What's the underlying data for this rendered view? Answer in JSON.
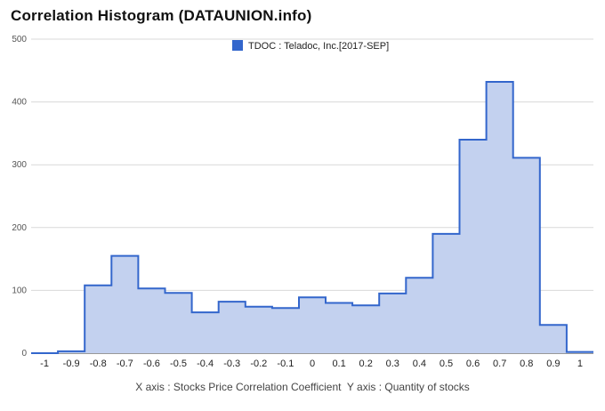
{
  "title": "Correlation Histogram (DATAUNION.info)",
  "caption": "X axis : Stocks Price Correlation Coefficient  Y axis : Quantity of stocks",
  "colors": {
    "line": "#3366cc",
    "fill": "#c3d1ef",
    "grid": "#d9d9d9",
    "legend_swatch": "#3366cc"
  },
  "chart_data": {
    "type": "area",
    "series": [
      {
        "name": "TDOC : Teladoc, Inc.[2017-SEP]",
        "x": [
          -1,
          -0.9,
          -0.8,
          -0.7,
          -0.6,
          -0.5,
          -0.4,
          -0.3,
          -0.2,
          -0.1,
          0,
          0.1,
          0.2,
          0.3,
          0.4,
          0.5,
          0.6,
          0.7,
          0.8,
          0.9,
          1
        ],
        "values": [
          0,
          3,
          108,
          155,
          103,
          96,
          65,
          82,
          74,
          72,
          89,
          80,
          76,
          95,
          120,
          190,
          340,
          432,
          311,
          45,
          2
        ]
      }
    ],
    "x_tick_labels": [
      "-1",
      "-0.9",
      "-0.8",
      "-0.7",
      "-0.6",
      "-0.5",
      "-0.4",
      "-0.3",
      "-0.2",
      "-0.1",
      "0",
      "0.1",
      "0.2",
      "0.3",
      "0.4",
      "0.5",
      "0.6",
      "0.7",
      "0.8",
      "0.9",
      "1"
    ],
    "y_ticks": [
      0,
      100,
      200,
      300,
      400,
      500
    ],
    "ylim": [
      0,
      500
    ],
    "xlim": [
      -1.05,
      1.05
    ],
    "grid": true,
    "legend_position": "top-center",
    "step": "centered"
  }
}
